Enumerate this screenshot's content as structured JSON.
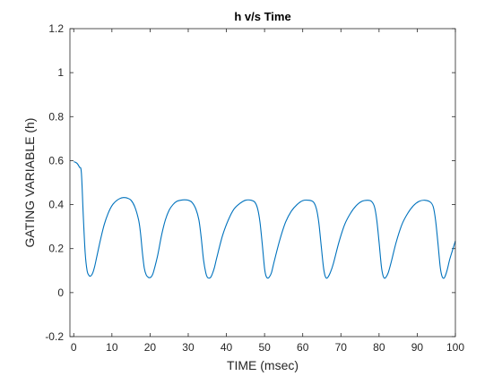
{
  "chart_data": {
    "type": "line",
    "title": "h v/s Time",
    "xlabel": "TIME (msec)",
    "ylabel": "GATING VARIABLE (h)",
    "xlim": [
      -1,
      100
    ],
    "ylim": [
      -0.2,
      1.2
    ],
    "xticks": [
      0,
      10,
      20,
      30,
      40,
      50,
      60,
      70,
      80,
      90,
      100
    ],
    "xtick_labels": [
      "0",
      "10",
      "20",
      "30",
      "40",
      "50",
      "60",
      "70",
      "80",
      "90",
      "100"
    ],
    "yticks": [
      -0.2,
      0,
      0.2,
      0.4,
      0.6,
      0.8,
      1,
      1.2
    ],
    "ytick_labels": [
      "-0.2",
      "0",
      "0.2",
      "0.4",
      "0.6",
      "0.8",
      "1",
      "1.2"
    ],
    "grid": false,
    "box": true,
    "colors": {
      "line": "#0072bd",
      "axes": "#262626"
    },
    "series": [
      {
        "x": [
          0,
          0.5,
          1,
          1.5,
          2,
          2.5,
          3,
          3.5,
          4,
          4.3,
          4.6,
          5,
          5.5,
          6,
          7,
          8,
          9,
          10,
          11,
          12,
          13,
          14,
          15,
          16,
          17,
          17.5,
          18,
          18.5,
          19,
          19.5,
          19.8,
          20.2,
          20.6,
          21,
          22,
          23,
          24,
          25,
          26,
          27,
          28,
          29,
          30,
          31,
          32,
          32.8,
          33.4,
          34,
          34.6,
          35,
          35.4,
          35.8,
          36.2,
          36.8,
          37.5,
          39,
          40.5,
          42,
          43.5,
          45,
          46.5,
          47.5,
          48.2,
          48.8,
          49.4,
          50,
          50.4,
          50.8,
          51.2,
          51.8,
          52.5,
          54,
          55.5,
          57,
          58.5,
          60,
          61.5,
          62.8,
          63.6,
          64.2,
          64.8,
          65.4,
          65.8,
          66.2,
          66.6,
          67.2,
          68,
          69.5,
          71,
          72.5,
          74,
          75.5,
          77,
          78,
          78.8,
          79.4,
          80,
          80.6,
          81,
          81.4,
          81.8,
          82.4,
          83.2,
          84.5,
          86,
          87.5,
          89,
          90.5,
          92,
          93.4,
          94.2,
          94.8,
          95.4,
          96,
          96.4,
          96.8,
          97.2,
          97.8,
          98.5,
          99.2,
          100
        ],
        "y": [
          0.595,
          0.592,
          0.585,
          0.57,
          0.545,
          0.35,
          0.18,
          0.1,
          0.078,
          0.075,
          0.078,
          0.09,
          0.12,
          0.16,
          0.24,
          0.31,
          0.36,
          0.395,
          0.415,
          0.427,
          0.432,
          0.43,
          0.42,
          0.39,
          0.33,
          0.27,
          0.18,
          0.11,
          0.08,
          0.07,
          0.068,
          0.07,
          0.08,
          0.1,
          0.17,
          0.26,
          0.33,
          0.375,
          0.4,
          0.415,
          0.42,
          0.422,
          0.42,
          0.41,
          0.38,
          0.33,
          0.25,
          0.15,
          0.09,
          0.07,
          0.066,
          0.068,
          0.08,
          0.11,
          0.16,
          0.26,
          0.33,
          0.38,
          0.405,
          0.42,
          0.42,
          0.41,
          0.38,
          0.32,
          0.22,
          0.11,
          0.075,
          0.066,
          0.07,
          0.09,
          0.14,
          0.24,
          0.32,
          0.37,
          0.4,
          0.418,
          0.42,
          0.412,
          0.38,
          0.32,
          0.22,
          0.12,
          0.08,
          0.066,
          0.07,
          0.09,
          0.13,
          0.23,
          0.31,
          0.36,
          0.395,
          0.415,
          0.42,
          0.415,
          0.39,
          0.33,
          0.23,
          0.12,
          0.08,
          0.066,
          0.07,
          0.09,
          0.14,
          0.23,
          0.31,
          0.36,
          0.395,
          0.415,
          0.42,
          0.412,
          0.39,
          0.33,
          0.23,
          0.12,
          0.08,
          0.066,
          0.07,
          0.1,
          0.15,
          0.19,
          0.235
        ]
      }
    ]
  }
}
